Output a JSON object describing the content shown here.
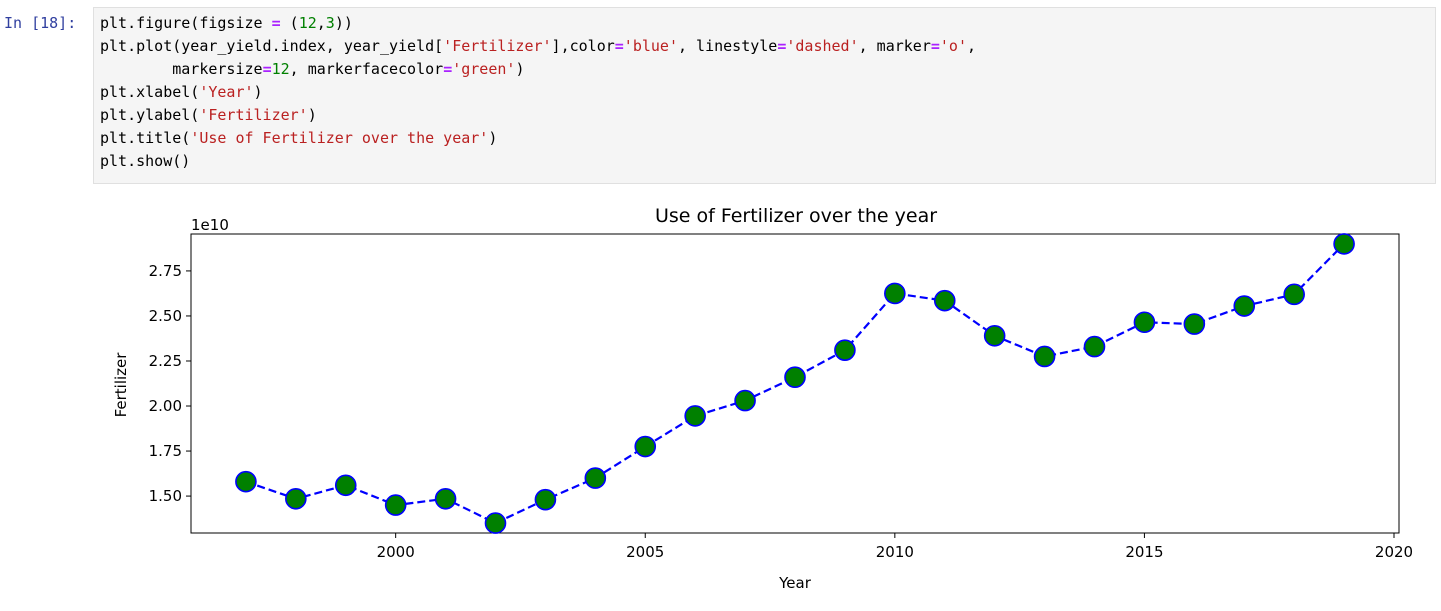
{
  "cell": {
    "prompt": "In [18]:",
    "code_lines": [
      [
        {
          "t": "plt.figure(figsize "
        },
        {
          "t": "=",
          "c": "o"
        },
        {
          "t": " ("
        },
        {
          "t": "12",
          "c": "n"
        },
        {
          "t": ","
        },
        {
          "t": "3",
          "c": "n"
        },
        {
          "t": "))"
        }
      ],
      [
        {
          "t": "plt.plot(year_yield.index, year_yield["
        },
        {
          "t": "'Fertilizer'",
          "c": "s"
        },
        {
          "t": "],color"
        },
        {
          "t": "=",
          "c": "o"
        },
        {
          "t": "'blue'",
          "c": "s"
        },
        {
          "t": ", linestyle"
        },
        {
          "t": "=",
          "c": "o"
        },
        {
          "t": "'dashed'",
          "c": "s"
        },
        {
          "t": ", marker"
        },
        {
          "t": "=",
          "c": "o"
        },
        {
          "t": "'o'",
          "c": "s"
        },
        {
          "t": ","
        }
      ],
      [
        {
          "t": "        markersize"
        },
        {
          "t": "=",
          "c": "o"
        },
        {
          "t": "12",
          "c": "n"
        },
        {
          "t": ", markerfacecolor"
        },
        {
          "t": "=",
          "c": "o"
        },
        {
          "t": "'green'",
          "c": "s"
        },
        {
          "t": ")"
        }
      ],
      [
        {
          "t": "plt.xlabel("
        },
        {
          "t": "'Year'",
          "c": "s"
        },
        {
          "t": ")"
        }
      ],
      [
        {
          "t": "plt.ylabel("
        },
        {
          "t": "'Fertilizer'",
          "c": "s"
        },
        {
          "t": ")"
        }
      ],
      [
        {
          "t": "plt.title("
        },
        {
          "t": "'Use of Fertilizer over the year'",
          "c": "s"
        },
        {
          "t": ")"
        }
      ],
      [
        {
          "t": "plt.show()"
        }
      ]
    ]
  },
  "chart_data": {
    "type": "line",
    "title": "Use of Fertilizer over the year",
    "xlabel": "Year",
    "ylabel": "Fertilizer",
    "offset_label": "1e10",
    "x": [
      1997,
      1998,
      1999,
      2000,
      2001,
      2002,
      2003,
      2004,
      2005,
      2006,
      2007,
      2008,
      2009,
      2010,
      2011,
      2012,
      2013,
      2014,
      2015,
      2016,
      2017,
      2018,
      2019
    ],
    "series": [
      {
        "values": [
          1.58,
          1.485,
          1.56,
          1.45,
          1.485,
          1.35,
          1.48,
          1.6,
          1.775,
          1.945,
          2.03,
          2.16,
          2.31,
          2.625,
          2.585,
          2.39,
          2.275,
          2.33,
          2.465,
          2.455,
          2.555,
          2.62,
          2.9
        ],
        "line_color": "#0000ff",
        "linestyle": "dashed",
        "marker": "o",
        "marker_face_color": "#008000",
        "marker_edge_color": "#0000ff"
      }
    ],
    "xlim": [
      1995.9,
      2020.1
    ],
    "ylim": [
      1.295,
      2.955
    ],
    "xticks": [
      2000,
      2005,
      2010,
      2015,
      2020
    ],
    "yticks": [
      1.5,
      1.75,
      2.0,
      2.25,
      2.5,
      2.75
    ],
    "xtick_labels": [
      "2000",
      "2005",
      "2010",
      "2015",
      "2020"
    ],
    "ytick_labels": [
      "1.50",
      "1.75",
      "2.00",
      "2.25",
      "2.50",
      "2.75"
    ],
    "grid": false,
    "legend": "none"
  }
}
